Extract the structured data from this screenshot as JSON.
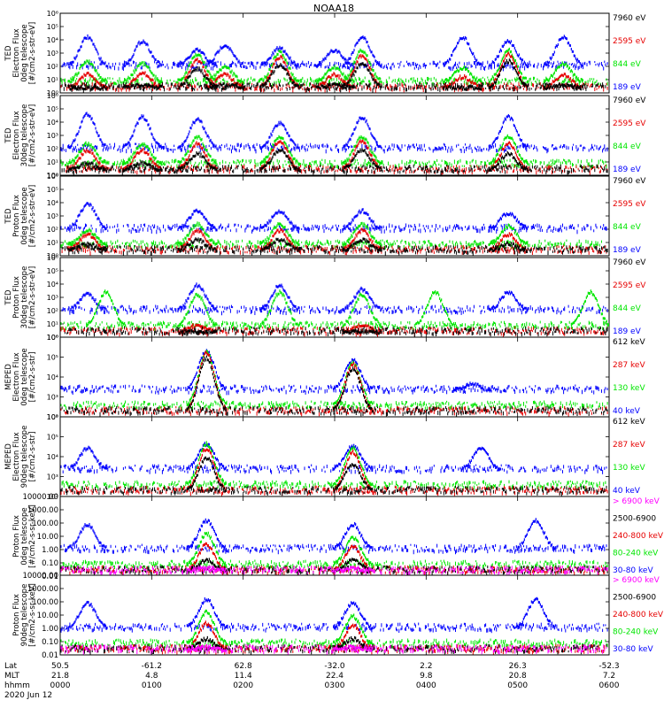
{
  "title": "NOAA18",
  "colors": {
    "black": "#000000",
    "red": "#e60000",
    "green": "#00e600",
    "blue": "#0000ff",
    "magenta": "#ff00ff"
  },
  "footer": {
    "rows": [
      "Lat",
      "MLT",
      "hhmm"
    ],
    "date": "2020 Jun 12",
    "columns": [
      {
        "lat": "50.5",
        "mlt": "21.8",
        "hhmm": "0000"
      },
      {
        "lat": "-61.2",
        "mlt": "4.8",
        "hhmm": "0100"
      },
      {
        "lat": "62.8",
        "mlt": "11.4",
        "hhmm": "0200"
      },
      {
        "lat": "-32.0",
        "mlt": "22.4",
        "hhmm": "0300"
      },
      {
        "lat": "2.2",
        "mlt": "9.8",
        "hhmm": "0400"
      },
      {
        "lat": "26.3",
        "mlt": "20.8",
        "hhmm": "0500"
      },
      {
        "lat": "-52.3",
        "mlt": "7.2",
        "hhmm": "0600"
      }
    ]
  },
  "chart_data": [
    {
      "type": "scatter",
      "ylabel": [
        "TED",
        "Electron Flux",
        "0deg telescope",
        "[#/cm2-s-str-eV]"
      ],
      "yscale": "log",
      "ylim": [
        1,
        1000000
      ],
      "ytick_labels": [
        "10⁰",
        "10¹",
        "10²",
        "10³",
        "10⁴",
        "10⁵",
        "10⁶"
      ],
      "xlim": [
        "0000",
        "0600"
      ],
      "series": [
        {
          "name": "7960 eV",
          "color": "black",
          "values": [
            [
              0.3,
              3
            ],
            [
              0.9,
              5
            ],
            [
              1.5,
              80
            ],
            [
              1.8,
              5
            ],
            [
              2.4,
              150
            ],
            [
              3.0,
              5
            ],
            [
              3.3,
              200
            ],
            [
              4.4,
              3
            ],
            [
              4.9,
              300
            ],
            [
              5.5,
              5
            ]
          ]
        },
        {
          "name": "2595 eV",
          "color": "red",
          "values": [
            [
              0.3,
              30
            ],
            [
              0.9,
              40
            ],
            [
              1.5,
              400
            ],
            [
              1.8,
              30
            ],
            [
              2.4,
              600
            ],
            [
              3.0,
              30
            ],
            [
              3.3,
              800
            ],
            [
              4.4,
              20
            ],
            [
              4.9,
              1000
            ],
            [
              5.5,
              30
            ]
          ]
        },
        {
          "name": "844 eV",
          "color": "green",
          "values": [
            [
              0.3,
              300
            ],
            [
              0.9,
              200
            ],
            [
              1.5,
              1000
            ],
            [
              1.8,
              100
            ],
            [
              2.4,
              1500
            ],
            [
              3.0,
              100
            ],
            [
              3.3,
              2000
            ],
            [
              4.4,
              100
            ],
            [
              4.9,
              2000
            ],
            [
              5.5,
              200
            ]
          ]
        },
        {
          "name": "189 eV",
          "color": "blue",
          "values": [
            [
              0.3,
              20000
            ],
            [
              0.9,
              10000
            ],
            [
              1.5,
              2000
            ],
            [
              1.8,
              5000
            ],
            [
              2.4,
              3000
            ],
            [
              3.0,
              2000
            ],
            [
              3.3,
              20000
            ],
            [
              4.4,
              20000
            ],
            [
              4.9,
              10000
            ],
            [
              5.5,
              20000
            ]
          ]
        }
      ]
    },
    {
      "type": "scatter",
      "ylabel": [
        "TED",
        "Electron Flux",
        "30deg telescope",
        "[#/cm2-s-str-eV]"
      ],
      "yscale": "log",
      "ylim": [
        1,
        1000000
      ],
      "ytick_labels": [
        "10⁰",
        "10¹",
        "10²",
        "10³",
        "10⁴",
        "10⁵",
        "10⁶"
      ],
      "xlim": [
        "0000",
        "0600"
      ],
      "series": [
        {
          "name": "7960 eV",
          "color": "black",
          "values": [
            [
              0.3,
              10
            ],
            [
              0.9,
              10
            ],
            [
              1.5,
              50
            ],
            [
              2.4,
              100
            ],
            [
              3.3,
              100
            ],
            [
              4.9,
              50
            ]
          ]
        },
        {
          "name": "2595 eV",
          "color": "red",
          "values": [
            [
              0.3,
              100
            ],
            [
              0.9,
              100
            ],
            [
              1.5,
              300
            ],
            [
              2.4,
              500
            ],
            [
              3.3,
              500
            ],
            [
              4.9,
              300
            ]
          ]
        },
        {
          "name": "844 eV",
          "color": "green",
          "values": [
            [
              0.3,
              300
            ],
            [
              0.9,
              300
            ],
            [
              1.5,
              1000
            ],
            [
              2.4,
              1000
            ],
            [
              3.3,
              1000
            ],
            [
              4.9,
              1000
            ]
          ]
        },
        {
          "name": "189 eV",
          "color": "blue",
          "values": [
            [
              0.3,
              50000
            ],
            [
              0.9,
              30000
            ],
            [
              1.5,
              20000
            ],
            [
              2.4,
              10000
            ],
            [
              3.3,
              30000
            ],
            [
              4.9,
              30000
            ]
          ]
        }
      ]
    },
    {
      "type": "scatter",
      "ylabel": [
        "TED",
        "Proton Flux",
        "0deg telescope",
        "[#/cm2-s-str-eV]"
      ],
      "yscale": "log",
      "ylim": [
        1,
        1000000
      ],
      "ytick_labels": [
        "10⁰",
        "10¹",
        "10²",
        "10³",
        "10⁴",
        "10⁵",
        "10⁶"
      ],
      "xlim": [
        "0000",
        "0600"
      ],
      "series": [
        {
          "name": "7960 eV",
          "color": "black",
          "values": [
            [
              0.3,
              10
            ],
            [
              1.5,
              20
            ],
            [
              2.4,
              20
            ],
            [
              3.3,
              20
            ],
            [
              4.9,
              10
            ]
          ]
        },
        {
          "name": "2595 eV",
          "color": "red",
          "values": [
            [
              0.3,
              50
            ],
            [
              1.5,
              100
            ],
            [
              2.4,
              100
            ],
            [
              3.3,
              100
            ],
            [
              4.9,
              50
            ]
          ]
        },
        {
          "name": "844 eV",
          "color": "green",
          "values": [
            [
              0.3,
              100
            ],
            [
              1.5,
              300
            ],
            [
              2.4,
              300
            ],
            [
              3.3,
              300
            ],
            [
              4.9,
              200
            ]
          ]
        },
        {
          "name": "189 eV",
          "color": "blue",
          "values": [
            [
              0.3,
              10000
            ],
            [
              1.5,
              3000
            ],
            [
              2.4,
              3000
            ],
            [
              3.3,
              3000
            ],
            [
              4.9,
              2000
            ]
          ]
        }
      ]
    },
    {
      "type": "scatter",
      "ylabel": [
        "TED",
        "Proton Flux",
        "30deg telescope",
        "[#/cm2-s-str-eV]"
      ],
      "yscale": "log",
      "ylim": [
        1,
        1000000
      ],
      "ytick_labels": [
        "10⁰",
        "10¹",
        "10²",
        "10³",
        "10⁴",
        "10⁵",
        "10⁶"
      ],
      "xlim": [
        "0000",
        "0600"
      ],
      "series": [
        {
          "name": "7960 eV",
          "color": "black",
          "values": [
            [
              1.5,
              3
            ],
            [
              3.3,
              3
            ]
          ]
        },
        {
          "name": "2595 eV",
          "color": "red",
          "values": [
            [
              1.5,
              10
            ],
            [
              3.3,
              10
            ]
          ]
        },
        {
          "name": "844 eV",
          "color": "green",
          "values": [
            [
              0.5,
              3000
            ],
            [
              1.5,
              2000
            ],
            [
              2.4,
              3000
            ],
            [
              3.3,
              2000
            ],
            [
              4.1,
              3000
            ],
            [
              5.8,
              3000
            ]
          ]
        },
        {
          "name": "189 eV",
          "color": "blue",
          "values": [
            [
              0.3,
              2000
            ],
            [
              1.5,
              10000
            ],
            [
              2.4,
              10000
            ],
            [
              3.3,
              5000
            ],
            [
              4.9,
              3000
            ]
          ]
        }
      ]
    },
    {
      "type": "scatter",
      "ylabel": [
        "MEPED",
        "Electron Flux",
        "0deg telescope",
        "[#/cm2-s-str]"
      ],
      "yscale": "log",
      "ylim": [
        100,
        1000000
      ],
      "ytick_labels": [
        "10²",
        "10³",
        "10⁴",
        "10⁵",
        "10⁶"
      ],
      "xlim": [
        "0000",
        "0600"
      ],
      "series": [
        {
          "name": "612 keV",
          "color": "black",
          "values": [
            [
              1.6,
              100000
            ],
            [
              3.2,
              30000
            ]
          ]
        },
        {
          "name": "287 keV",
          "color": "red",
          "values": [
            [
              1.6,
              200000
            ],
            [
              3.2,
              50000
            ]
          ]
        },
        {
          "name": "130 keV",
          "color": "green",
          "values": [
            [
              1.6,
              200000
            ],
            [
              3.2,
              60000
            ]
          ]
        },
        {
          "name": "40 keV",
          "color": "blue",
          "values": [
            [
              1.6,
              250000
            ],
            [
              3.2,
              80000
            ],
            [
              4.5,
              5000
            ]
          ]
        }
      ]
    },
    {
      "type": "scatter",
      "ylabel": [
        "MEPED",
        "Electron Flux",
        "90deg telescope",
        "[#/cm2-s-str]"
      ],
      "yscale": "log",
      "ylim": [
        100,
        1000000
      ],
      "ytick_labels": [
        "10²",
        "10³",
        "10⁴",
        "10⁵",
        "10⁶"
      ],
      "xlim": [
        "0000",
        "0600"
      ],
      "series": [
        {
          "name": "612 keV",
          "color": "black",
          "values": [
            [
              1.6,
              10000
            ],
            [
              3.2,
              5000
            ]
          ]
        },
        {
          "name": "287 keV",
          "color": "red",
          "values": [
            [
              1.6,
              30000
            ],
            [
              3.2,
              20000
            ]
          ]
        },
        {
          "name": "130 keV",
          "color": "green",
          "values": [
            [
              1.6,
              50000
            ],
            [
              3.2,
              30000
            ]
          ]
        },
        {
          "name": "40 keV",
          "color": "blue",
          "values": [
            [
              0.3,
              30000
            ],
            [
              1.6,
              50000
            ],
            [
              3.2,
              40000
            ],
            [
              4.6,
              30000
            ]
          ]
        }
      ]
    },
    {
      "type": "scatter",
      "ylabel": [
        "Proton Flux",
        "0deg telescope",
        "[#/cm2-s-sr-keV]"
      ],
      "yscale": "log",
      "ylim": [
        0.01,
        10000
      ],
      "ytick_labels": [
        "10000.00",
        "1000.00",
        "100.00",
        "10.00",
        "1.00",
        "0.10",
        "0.01"
      ],
      "xlim": [
        "0000",
        "0600"
      ],
      "series": [
        {
          "name": "> 6900 keV",
          "color": "magenta",
          "values": [
            [
              1.6,
              0.05
            ],
            [
              3.2,
              0.05
            ]
          ]
        },
        {
          "name": "2500-6900",
          "color": "black",
          "values": [
            [
              1.6,
              0.2
            ],
            [
              3.2,
              0.2
            ]
          ]
        },
        {
          "name": "240-800 keV",
          "color": "red",
          "values": [
            [
              1.6,
              3
            ],
            [
              3.2,
              2
            ]
          ]
        },
        {
          "name": "80-240 keV",
          "color": "green",
          "values": [
            [
              1.6,
              20
            ],
            [
              3.2,
              10
            ]
          ]
        },
        {
          "name": "30-80 keV",
          "color": "blue",
          "values": [
            [
              0.3,
              100
            ],
            [
              1.6,
              200
            ],
            [
              3.2,
              100
            ],
            [
              5.2,
              200
            ]
          ]
        }
      ]
    },
    {
      "type": "scatter",
      "ylabel": [
        "Proton Flux",
        "90deg telescope",
        "[#/cm2-s-sr-keV]"
      ],
      "yscale": "log",
      "ylim": [
        0.01,
        10000
      ],
      "ytick_labels": [
        "10000.00",
        "1000.00",
        "100.00",
        "10.00",
        "1.00",
        "0.10",
        "0.01"
      ],
      "xlim": [
        "0000",
        "0600"
      ],
      "series": [
        {
          "name": "> 6900 keV",
          "color": "magenta",
          "values": [
            [
              1.6,
              0.05
            ],
            [
              3.2,
              0.05
            ]
          ]
        },
        {
          "name": "2500-6900",
          "color": "black",
          "values": [
            [
              1.6,
              0.2
            ],
            [
              3.2,
              0.2
            ]
          ]
        },
        {
          "name": "240-800 keV",
          "color": "red",
          "values": [
            [
              1.6,
              3
            ],
            [
              3.2,
              2
            ]
          ]
        },
        {
          "name": "80-240 keV",
          "color": "green",
          "values": [
            [
              1.6,
              20
            ],
            [
              3.2,
              10
            ]
          ]
        },
        {
          "name": "30-80 keV",
          "color": "blue",
          "values": [
            [
              0.3,
              100
            ],
            [
              1.6,
              200
            ],
            [
              3.2,
              100
            ],
            [
              5.2,
              200
            ]
          ]
        }
      ]
    }
  ]
}
